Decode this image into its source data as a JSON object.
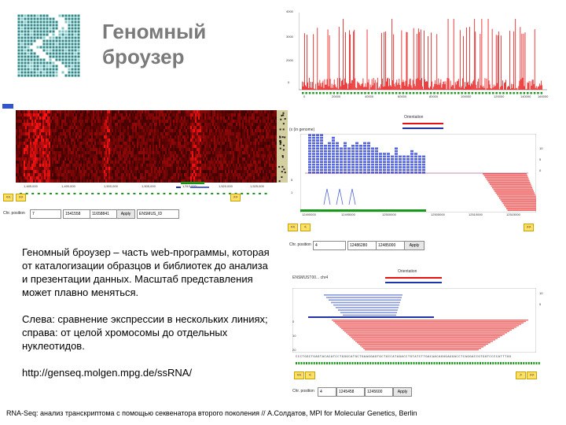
{
  "title": {
    "line1": "Геномный",
    "line2": "броузер"
  },
  "description": {
    "para1": "Геномный броузер – часть web-программы, которая от каталогизации образцов и библиотек до анализа и презентации данных. Масштаб представления может плавно меняться.",
    "para2": "Слева: сравнение экспрессии в нескольких линиях; справа: от целой хромосомы до отдельных нуклеотидов.",
    "url": "http://genseq.molgen.mpg.de/ssRNA/"
  },
  "footer": "RNA-Seq: анализ транскриптома с помощью секвенатора второго поколения // А.Солдатов, MPI for Molecular Genetics, Berlin",
  "colors": {
    "title": "#7a7a7a",
    "coverage_red": "#e81010",
    "gene_green": "#1a9a1a",
    "reads_blue": "#5566dd",
    "reads_red": "#f07070",
    "nav_button": "#ffe066"
  },
  "left_browser": {
    "axis_ticks": [
      "1,485,000",
      "1,490,000",
      "1,500,000",
      "1,505,000",
      "1,510,000",
      "1,520,000",
      "1,525,000"
    ],
    "nav_back": "<<",
    "nav_fwd": ">>",
    "position_label": "Chr. position",
    "chr_value": "7",
    "start_value": "1541558",
    "end_value": "11658841",
    "apply": "Apply",
    "gene_field": "ENSMUS_ID"
  },
  "top_right": {
    "y_ticks": [
      "4000",
      "3000",
      "2000",
      "0"
    ],
    "x_ticks": [
      "0",
      "20000",
      "40000",
      "60000",
      "80000",
      "100000",
      "120000",
      "140000",
      "160000"
    ]
  },
  "mid_right": {
    "legend_title": "Orientation",
    "track_label": "(x (in genome)",
    "right_ticks": [
      "10",
      "5",
      "0"
    ],
    "left_ticks": [
      "5",
      "1"
    ],
    "x_ticks": [
      "12490000",
      "12495000",
      "12500000",
      "12505000",
      "12510000",
      "12515000"
    ],
    "nav_back": "<<",
    "nav_back2": "<",
    "nav_fwd": ">>",
    "position_label": "Chr. position",
    "chr_value": "4",
    "start_value": "12486280",
    "end_value": "12485000",
    "apply": "Apply"
  },
  "bottom_right": {
    "legend_title": "Orientation",
    "track_label": "ENSMUST00... chr4",
    "right_ticks": [
      "10",
      "5"
    ],
    "left_ticks": [
      "0",
      "10",
      "20"
    ],
    "sequence": "CCCTGGCTGAGTACACATCCTGGGCATGCTGAAGGAGTGCTGCCATAGACCTGTATCTTGACAACAGGGAGGACCTCAGGACCGTGGTCCCCATTTGG",
    "nav_back": "<<",
    "nav_back2": "<",
    "nav_fwd": ">",
    "nav_fwd2": ">>",
    "position_label": "Chr. position",
    "chr_value": "4",
    "start_value": "1245458",
    "end_value": "1245600",
    "apply": "Apply"
  }
}
